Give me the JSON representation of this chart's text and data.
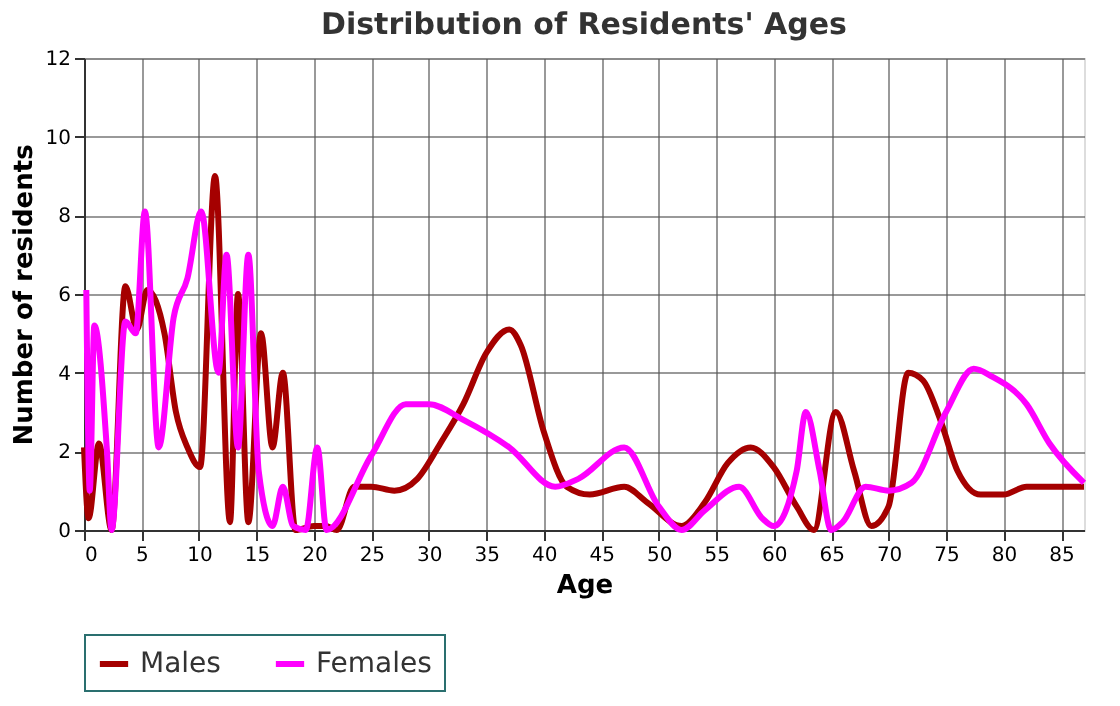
{
  "chart_data": {
    "type": "line",
    "title": "Distribution of Residents' Ages",
    "xlabel": "Age",
    "ylabel": "Number of residents",
    "xlim": [
      0,
      87
    ],
    "xticks": [
      0,
      5,
      10,
      15,
      20,
      25,
      30,
      35,
      40,
      45,
      50,
      55,
      60,
      65,
      70,
      75,
      80,
      85
    ],
    "ylim": [
      0,
      12
    ],
    "yticks": [
      0,
      2,
      4,
      6,
      8,
      10,
      12
    ],
    "grid": true,
    "legend": "bottom",
    "series": [
      {
        "name": "Males",
        "color": "#a50000",
        "x": [
          0,
          0.4,
          1.3,
          2.4,
          3.6,
          4.6,
          5.5,
          7,
          8,
          9,
          10.1,
          11.4,
          12.7,
          13.4,
          14.3,
          15.4,
          16.4,
          17.3,
          18.4,
          20,
          21,
          22,
          23.5,
          25,
          27,
          29,
          31,
          33,
          35,
          37,
          38,
          40,
          42,
          44,
          47,
          49,
          52,
          54,
          56,
          58,
          60,
          62,
          63.5,
          65.4,
          67,
          68.5,
          70,
          71.7,
          73,
          74.5,
          76,
          78,
          80,
          82,
          84,
          87
        ],
        "values": [
          2.1,
          0.3,
          2.2,
          0,
          6.2,
          5.1,
          6.1,
          5,
          3,
          2.1,
          1.6,
          9,
          0.2,
          6,
          0.2,
          5,
          2.1,
          4,
          0,
          0.1,
          0.1,
          0,
          1.1,
          1.1,
          1,
          1.3,
          2.2,
          3.2,
          4.5,
          5.1,
          4.7,
          2.5,
          1.1,
          0.9,
          1.1,
          0.7,
          0.1,
          0.7,
          1.7,
          2.1,
          1.6,
          0.6,
          0,
          3,
          1.5,
          0.1,
          0.6,
          4,
          3.8,
          2.8,
          1.5,
          0.9,
          0.9,
          1.1,
          1.1,
          1.1
        ]
      },
      {
        "name": "Females",
        "color": "#ff00ff",
        "x": [
          0.2,
          0.5,
          0.9,
          2,
          2.4,
          3.6,
          4.5,
          5.3,
          6.5,
          7.8,
          9,
          10.2,
          11.7,
          12.4,
          13.4,
          14.3,
          15.2,
          16.4,
          17.3,
          18.2,
          19.3,
          20.3,
          21.1,
          25,
          28,
          30,
          33,
          37,
          41,
          43,
          47,
          50,
          52,
          54,
          57,
          59,
          60,
          62,
          62.8,
          64,
          65,
          66,
          68,
          70,
          72,
          75,
          77.4,
          79,
          82,
          84,
          87
        ],
        "values": [
          6.1,
          1,
          5.2,
          2,
          0,
          5.3,
          5,
          8.1,
          2.1,
          5.4,
          6.4,
          8.1,
          4,
          7,
          2.1,
          7,
          1.5,
          0.1,
          1.1,
          0.1,
          0,
          2.1,
          0,
          1.9,
          3.2,
          3.2,
          2.8,
          2.1,
          1.1,
          1.3,
          2.1,
          0.6,
          0,
          0.5,
          1.1,
          0.3,
          0.1,
          1.5,
          3,
          1.5,
          0,
          0.2,
          1.1,
          1,
          1.2,
          3,
          4.1,
          3.9,
          3.2,
          2.2,
          1.2
        ]
      }
    ]
  }
}
